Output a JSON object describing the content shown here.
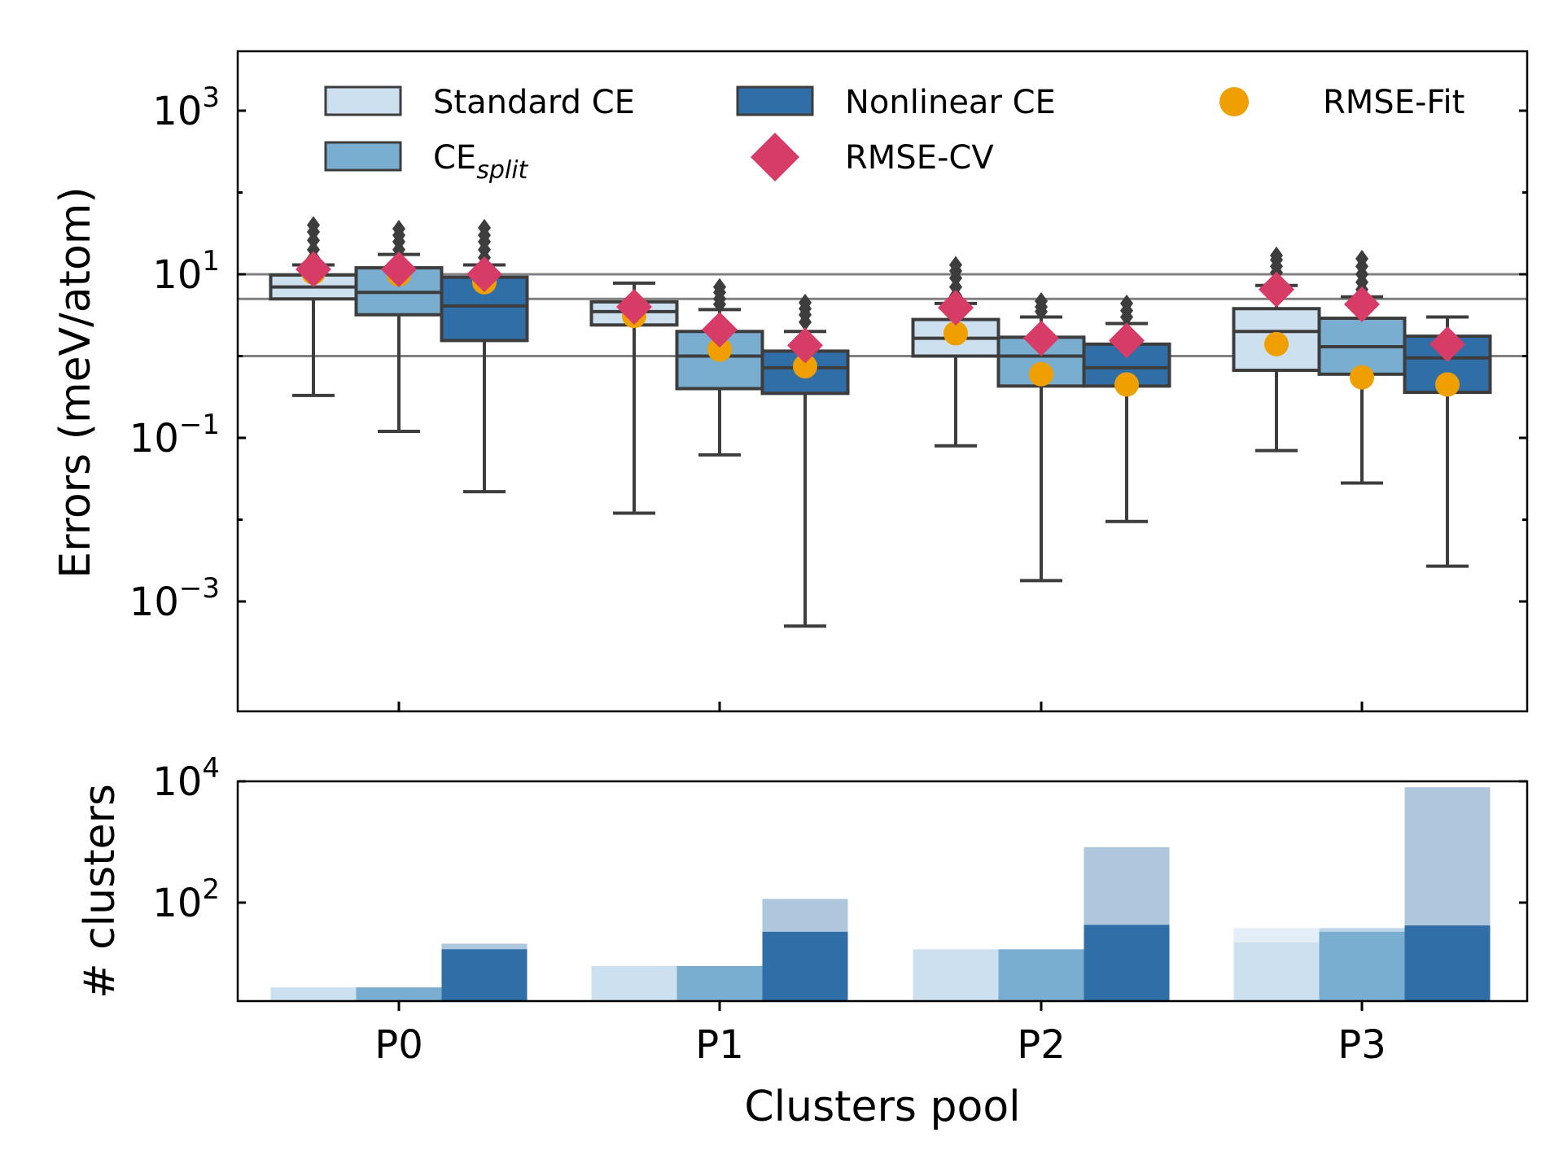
{
  "chart_data": [
    {
      "type": "box",
      "ylabel": "Errors (meV/atom)",
      "yscale": "log",
      "ylim": [
        3e-05,
        5000
      ],
      "ytick_labels": [
        {
          "base": "10",
          "exp": "3"
        },
        {
          "base": "10",
          "exp": "1"
        },
        {
          "base": "10",
          "exp": "−1"
        },
        {
          "base": "10",
          "exp": "−3"
        }
      ],
      "ytick_values": [
        1000,
        10,
        0.1,
        0.001
      ],
      "reference_lines": [
        10,
        5,
        1
      ],
      "categories": [
        "P0",
        "P1",
        "P2",
        "P3"
      ],
      "legend": {
        "position": "top",
        "items": [
          {
            "label": "Standard CE",
            "kind": "patch",
            "color": "#cde0f0"
          },
          {
            "label": "CE",
            "sub": "split",
            "kind": "patch",
            "color": "#79aed1"
          },
          {
            "label": "Nonlinear CE",
            "kind": "patch",
            "color": "#2f6ea7"
          },
          {
            "label": "RMSE-CV",
            "kind": "diamond",
            "color": "#d63c66"
          },
          {
            "label": "RMSE-Fit",
            "kind": "circle",
            "color": "#ef9f00"
          }
        ]
      },
      "series": [
        {
          "name": "Standard CE",
          "color": "#cde0f0",
          "boxes": [
            {
              "whislo": 0.33,
              "q1": 5.0,
              "med": 7.0,
              "q3": 9.8,
              "whishi": 13.0,
              "fliers": [
                16,
                20,
                26,
                33,
                40
              ],
              "rmse_cv": 11.5,
              "rmse_fit": 10.5
            },
            {
              "whislo": 0.012,
              "q1": 2.4,
              "med": 3.5,
              "q3": 4.6,
              "whishi": 7.8,
              "fliers": [],
              "rmse_cv": 4.0,
              "rmse_fit": 3.1
            },
            {
              "whislo": 0.08,
              "q1": 1.0,
              "med": 1.65,
              "q3": 2.8,
              "whishi": 4.4,
              "fliers": [
                5.5,
                7.0,
                9.0,
                11.0,
                13.0
              ],
              "rmse_cv": 3.9,
              "rmse_fit": 1.9
            },
            {
              "whislo": 0.07,
              "q1": 0.67,
              "med": 2.0,
              "q3": 3.8,
              "whishi": 7.3,
              "fliers": [
                8.5,
                10.5,
                12.5,
                15.0,
                17.0
              ],
              "rmse_cv": 6.5,
              "rmse_fit": 1.4
            }
          ]
        },
        {
          "name": "CE_split",
          "color": "#79aed1",
          "boxes": [
            {
              "whislo": 0.12,
              "q1": 3.2,
              "med": 6.0,
              "q3": 12.0,
              "whishi": 17.5,
              "fliers": [
                20,
                25,
                30,
                36
              ],
              "rmse_cv": 11.5,
              "rmse_fit": 10.0
            },
            {
              "whislo": 0.062,
              "q1": 0.4,
              "med": 1.0,
              "q3": 2.0,
              "whishi": 3.7,
              "fliers": [
                4.3,
                5.0,
                6.0,
                7.0
              ],
              "rmse_cv": 2.1,
              "rmse_fit": 1.2
            },
            {
              "whislo": 0.0018,
              "q1": 0.43,
              "med": 1.0,
              "q3": 1.7,
              "whishi": 3.0,
              "fliers": [
                3.5,
                4.0,
                4.7
              ],
              "rmse_cv": 1.65,
              "rmse_fit": 0.6
            },
            {
              "whislo": 0.028,
              "q1": 0.6,
              "med": 1.3,
              "q3": 2.9,
              "whishi": 5.3,
              "fliers": [
                6.5,
                8.0,
                10.0,
                12.5,
                15.5
              ],
              "rmse_cv": 4.3,
              "rmse_fit": 0.55
            }
          ]
        },
        {
          "name": "Nonlinear CE",
          "color": "#2f6ea7",
          "boxes": [
            {
              "whislo": 0.022,
              "q1": 1.55,
              "med": 4.1,
              "q3": 9.2,
              "whishi": 13.0,
              "fliers": [
                16,
                20,
                25,
                30,
                37
              ],
              "rmse_cv": 10.0,
              "rmse_fit": 8.0
            },
            {
              "whislo": 0.0005,
              "q1": 0.35,
              "med": 0.72,
              "q3": 1.15,
              "whishi": 2.0,
              "fliers": [
                2.6,
                3.2,
                3.8,
                4.5
              ],
              "rmse_cv": 1.35,
              "rmse_fit": 0.75
            },
            {
              "whislo": 0.0095,
              "q1": 0.43,
              "med": 0.72,
              "q3": 1.4,
              "whishi": 2.5,
              "fliers": [
                3.0,
                3.6,
                4.4
              ],
              "rmse_cv": 1.55,
              "rmse_fit": 0.45
            },
            {
              "whislo": 0.0027,
              "q1": 0.36,
              "med": 0.95,
              "q3": 1.75,
              "whishi": 3.0,
              "fliers": [],
              "rmse_cv": 1.4,
              "rmse_fit": 0.45
            }
          ]
        }
      ]
    },
    {
      "type": "bar",
      "ylabel": "# clusters",
      "xlabel": "Clusters pool",
      "yscale": "log",
      "ylim": [
        3,
        11000
      ],
      "ytick_labels": [
        {
          "base": "10",
          "exp": "4"
        },
        {
          "base": "10",
          "exp": "2"
        }
      ],
      "ytick_values": [
        10000,
        100
      ],
      "categories": [
        "P0",
        "P1",
        "P2",
        "P3"
      ],
      "series": [
        {
          "name": "Standard CE",
          "values": [
            4,
            9,
            17,
            22
          ],
          "total_values": [
            4,
            9,
            17,
            38
          ],
          "color": "#cde0f0"
        },
        {
          "name": "CE_split",
          "values": [
            4,
            9,
            17,
            33
          ],
          "total_values": [
            4,
            9,
            17,
            38
          ],
          "color": "#79aed1"
        },
        {
          "name": "Nonlinear CE",
          "values": [
            17,
            33,
            43,
            42
          ],
          "total_values": [
            21,
            115,
            820,
            8000
          ],
          "color": "#2f6ea7"
        }
      ]
    }
  ]
}
